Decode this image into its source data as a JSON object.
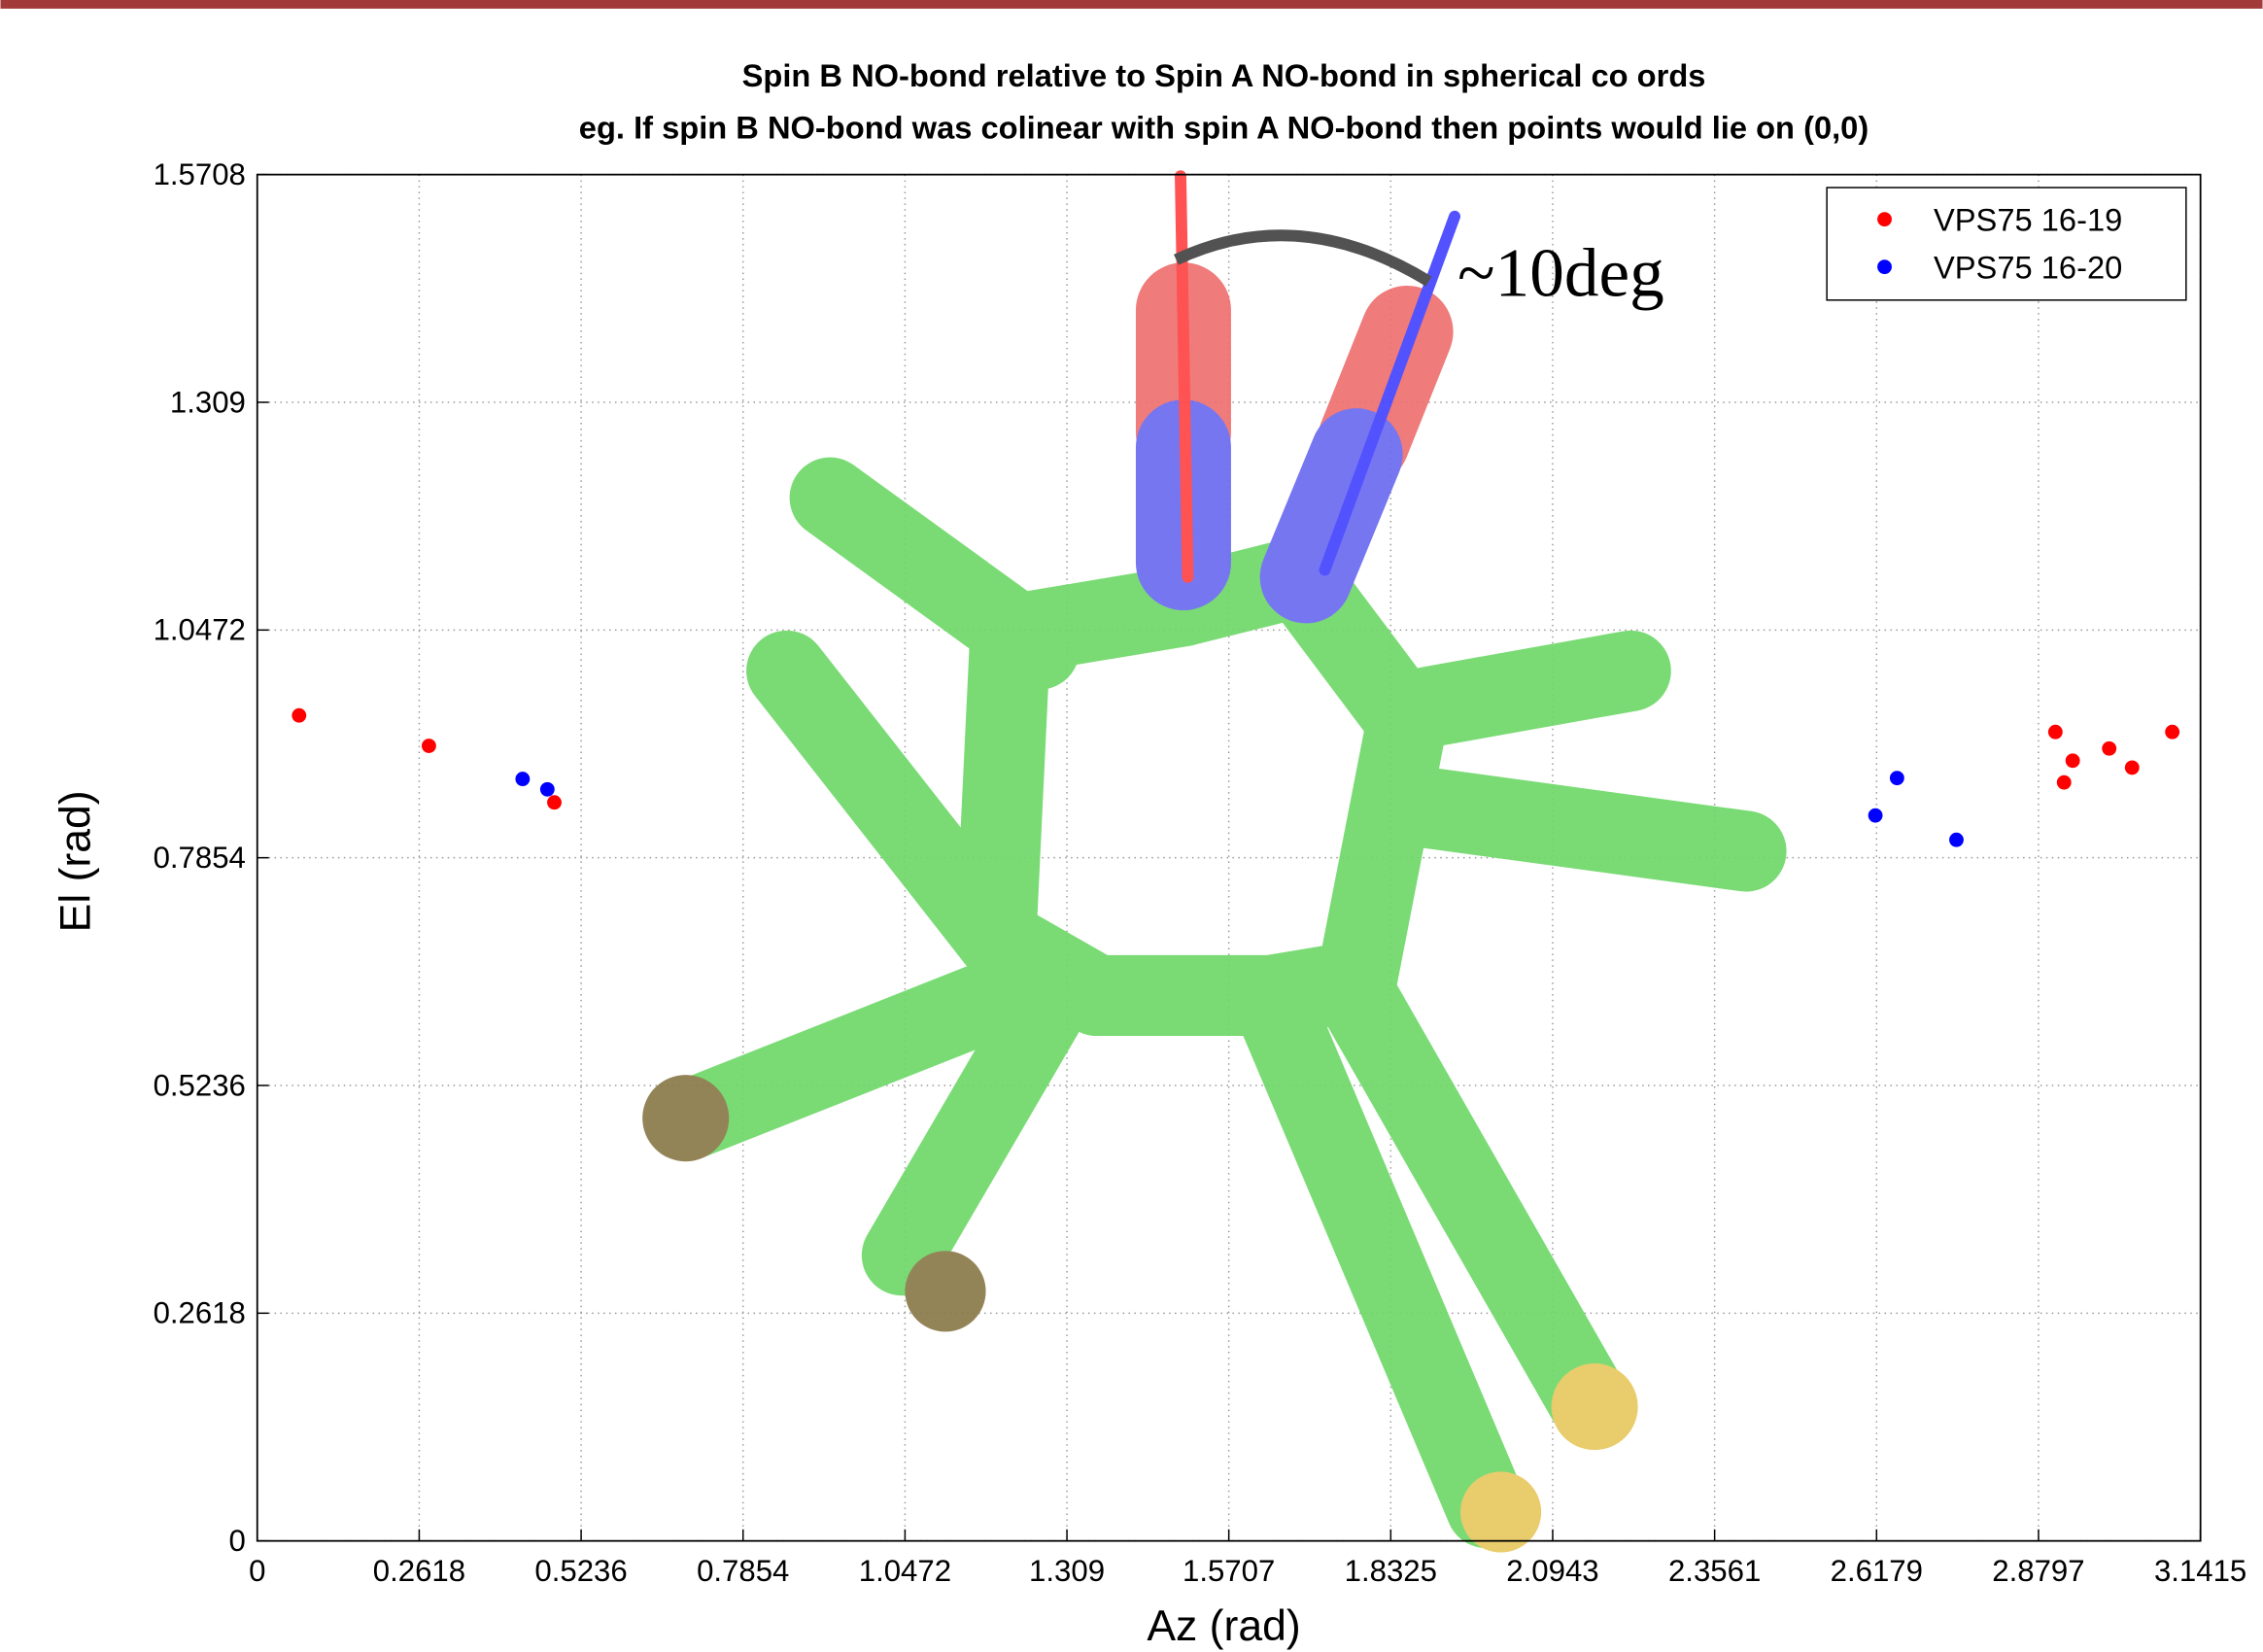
{
  "chart_data": {
    "type": "scatter",
    "title": "Spin B NO-bond relative to Spin A NO-bond in spherical co ords",
    "subtitle": "eg. If spin B NO-bond was colinear with spin A NO-bond then points would lie on (0,0)",
    "x_label": "Az (rad)",
    "y_label": "El (rad)",
    "annotation": "~10deg",
    "xlim": [
      0,
      3.1416
    ],
    "ylim": [
      0,
      1.5708
    ],
    "xticks": [
      0,
      0.2618,
      0.5236,
      0.7854,
      1.0472,
      1.309,
      1.5707,
      1.8325,
      2.0943,
      2.3561,
      2.6179,
      2.8797,
      3.1415
    ],
    "yticks": [
      0,
      0.2618,
      0.5236,
      0.7854,
      1.0472,
      1.309,
      1.5708
    ],
    "grid": true,
    "legend": "upper right",
    "series": [
      {
        "name": "VPS75 16-19",
        "color": "#ff0000",
        "x": [
          0.0676,
          0.2775,
          0.4803,
          2.907,
          2.935,
          2.921,
          2.994,
          3.031,
          3.096
        ],
        "values": [
          0.949,
          0.914,
          0.849,
          0.93,
          0.897,
          0.872,
          0.911,
          0.889,
          0.93
        ]
      },
      {
        "name": "VPS75 16-20",
        "color": "#0000ff",
        "x": [
          0.429,
          0.469,
          2.616,
          2.651,
          2.747
        ],
        "values": [
          0.876,
          0.864,
          0.834,
          0.877,
          0.806
        ]
      }
    ]
  }
}
